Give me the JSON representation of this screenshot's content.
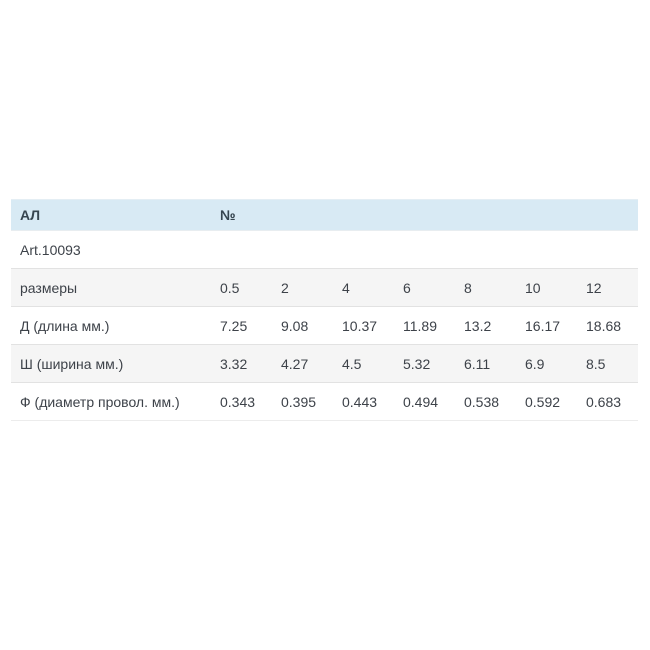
{
  "table": {
    "header": {
      "name": "АЛ",
      "number_symbol": "№"
    },
    "rows": [
      {
        "label": "Art.10093",
        "values": []
      },
      {
        "label": "размеры",
        "values": [
          "0.5",
          "2",
          "4",
          "6",
          "8",
          "10",
          "12"
        ]
      },
      {
        "label": "Д (длина мм.)",
        "values": [
          "7.25",
          "9.08",
          "10.37",
          "11.89",
          "13.2",
          "16.17",
          "18.68"
        ]
      },
      {
        "label": "Ш (ширина мм.)",
        "values": [
          "3.32",
          "4.27",
          "4.5",
          "5.32",
          "6.11",
          "6.9",
          "8.5"
        ]
      },
      {
        "label": "Ф (диаметр провол. мм.)",
        "values": [
          "0.343",
          "0.395",
          "0.443",
          "0.494",
          "0.538",
          "0.592",
          "0.683"
        ]
      }
    ],
    "colors": {
      "header_bg": "#d8eaf4",
      "header_text": "#36454f",
      "row_bg": "#ffffff",
      "row_alt_bg": "#f5f5f5",
      "divider": "#e2e2e2",
      "text": "#3d4249",
      "page_bg": "#ffffff"
    }
  }
}
